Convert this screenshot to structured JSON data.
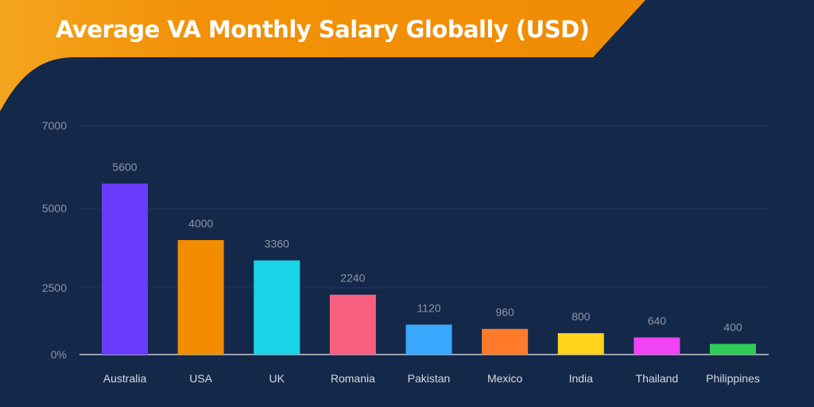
{
  "title": "Average VA Monthly Salary Globally (USD)",
  "colors": {
    "background": "#14284a",
    "banner": "#f29107"
  },
  "chart_data": {
    "type": "bar",
    "title": "Average VA Monthly Salary Globally (USD)",
    "xlabel": "",
    "ylabel": "",
    "categories": [
      "Australia",
      "USA",
      "UK",
      "Romania",
      "Pakistan",
      "Mexico",
      "India",
      "Thailand",
      "Philippines"
    ],
    "values": [
      5600,
      4000,
      3360,
      2240,
      1120,
      960,
      800,
      640,
      400
    ],
    "data_labels": [
      "5600",
      "4000",
      "3360",
      "2240",
      "1120",
      "960",
      "800",
      "640",
      "400"
    ],
    "bar_colors": [
      "#6a3bff",
      "#f28c00",
      "#19d4e6",
      "#f7607f",
      "#3aa8ff",
      "#ff7b2b",
      "#ffd31a",
      "#ef43f4",
      "#2fcb57"
    ],
    "y_ticks": [
      0,
      2500,
      5000,
      7000
    ],
    "y_tick_labels": [
      "0%",
      "2500",
      "5000",
      "7000"
    ],
    "ylim": [
      0,
      7000
    ],
    "grid": true,
    "legend": "none"
  }
}
